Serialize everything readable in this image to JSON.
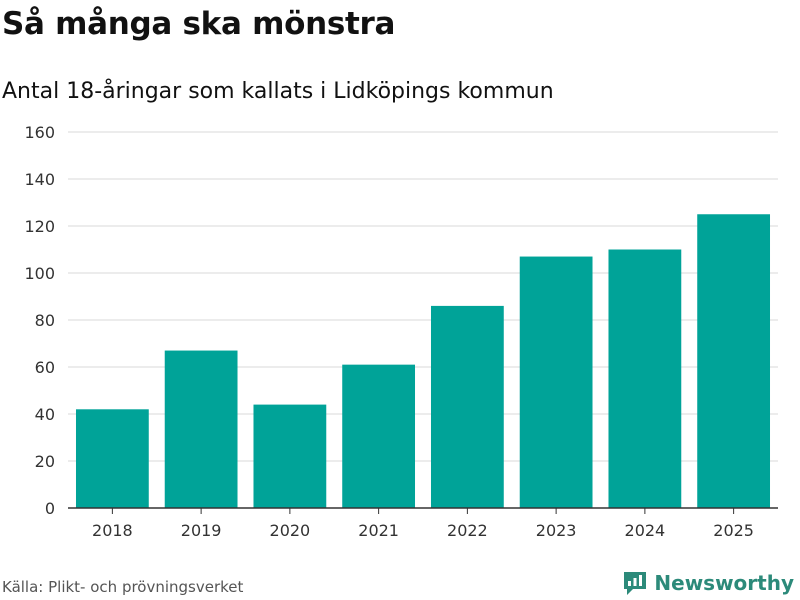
{
  "header": {
    "title": "Så många ska mönstra",
    "subtitle": "Antal 18-åringar som kallats i Lidköpings kommun"
  },
  "footer": {
    "source": "Källa: Plikt- och prövningsverket",
    "brand": "Newsworthy"
  },
  "colors": {
    "bar": "#00a398",
    "grid": "#d9d9d9",
    "axis": "#333333",
    "brand": "#2c8a7a"
  },
  "chart_data": {
    "type": "bar",
    "title": "Så många ska mönstra",
    "subtitle": "Antal 18-åringar som kallats i Lidköpings kommun",
    "xlabel": "",
    "ylabel": "",
    "categories": [
      "2018",
      "2019",
      "2020",
      "2021",
      "2022",
      "2023",
      "2024",
      "2025"
    ],
    "values": [
      42,
      67,
      44,
      61,
      86,
      107,
      110,
      125
    ],
    "ylim": [
      0,
      160
    ],
    "yticks": [
      0,
      20,
      40,
      60,
      80,
      100,
      120,
      140,
      160
    ],
    "grid": true
  }
}
